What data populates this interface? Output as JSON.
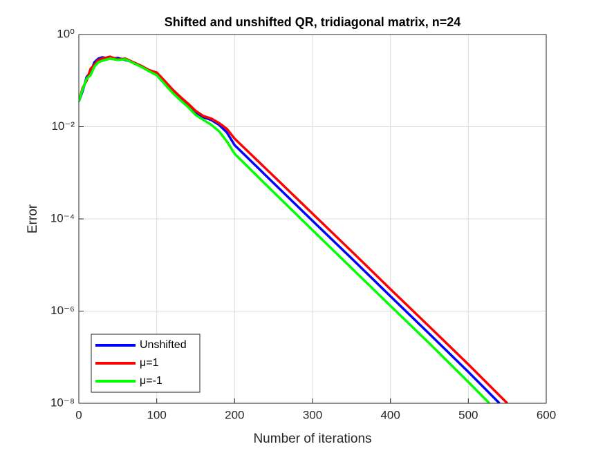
{
  "chart_data": {
    "type": "line",
    "title": "Shifted and unshifted QR, tridiagonal matrix, n=24",
    "xlabel": "Number of iterations",
    "ylabel": "Error",
    "xlim": [
      0,
      600
    ],
    "xticks": [
      0,
      100,
      200,
      300,
      400,
      500,
      600
    ],
    "ylim": [
      1e-08,
      1
    ],
    "log_y": true,
    "grid": true,
    "legend": "lower left",
    "yticks": [
      {
        "value": 1e-08,
        "label": "10⁻⁸"
      },
      {
        "value": 1e-06,
        "label": "10⁻⁶"
      },
      {
        "value": 0.0001,
        "label": "10⁻⁴"
      },
      {
        "value": 0.01,
        "label": "10⁻²"
      },
      {
        "value": 1,
        "label": "10⁰"
      }
    ],
    "series": [
      {
        "name": "Unshifted",
        "color": "#0000ff",
        "x": [
          0,
          5,
          10,
          15,
          20,
          25,
          30,
          40,
          50,
          60,
          70,
          80,
          90,
          100,
          110,
          120,
          130,
          140,
          150,
          160,
          170,
          180,
          190,
          200,
          250,
          300,
          350,
          400,
          450,
          500,
          540
        ],
        "values": [
          0.035,
          0.06,
          0.12,
          0.15,
          0.25,
          0.3,
          0.32,
          0.3,
          0.31,
          0.28,
          0.25,
          0.2,
          0.17,
          0.14,
          0.09,
          0.06,
          0.04,
          0.03,
          0.02,
          0.016,
          0.014,
          0.011,
          0.0075,
          0.004,
          0.0006,
          9.1e-05,
          1.4e-05,
          2.1e-06,
          3.2e-07,
          4.8e-08,
          1e-08
        ]
      },
      {
        "name": "μ=1",
        "color": "#ff0000",
        "x": [
          0,
          5,
          10,
          15,
          20,
          25,
          30,
          40,
          50,
          60,
          70,
          80,
          90,
          100,
          110,
          120,
          130,
          140,
          150,
          160,
          170,
          180,
          190,
          200,
          250,
          300,
          350,
          400,
          450,
          500,
          550
        ],
        "values": [
          0.035,
          0.07,
          0.1,
          0.18,
          0.22,
          0.28,
          0.3,
          0.33,
          0.29,
          0.3,
          0.25,
          0.21,
          0.17,
          0.15,
          0.1,
          0.065,
          0.045,
          0.032,
          0.022,
          0.017,
          0.015,
          0.012,
          0.009,
          0.0055,
          0.00085,
          0.00013,
          2e-05,
          3e-06,
          4.6e-07,
          7e-08,
          1e-08
        ]
      },
      {
        "name": "μ=-1",
        "color": "#00ff00",
        "x": [
          0,
          5,
          10,
          15,
          20,
          25,
          30,
          40,
          50,
          60,
          70,
          80,
          90,
          100,
          110,
          120,
          130,
          140,
          150,
          160,
          170,
          180,
          190,
          200,
          250,
          300,
          350,
          400,
          450,
          500,
          527
        ],
        "values": [
          0.035,
          0.065,
          0.11,
          0.13,
          0.2,
          0.25,
          0.27,
          0.3,
          0.28,
          0.29,
          0.24,
          0.2,
          0.16,
          0.13,
          0.085,
          0.055,
          0.038,
          0.027,
          0.018,
          0.014,
          0.011,
          0.008,
          0.0048,
          0.0026,
          0.00038,
          5.7e-05,
          8.6e-06,
          1.3e-06,
          2e-07,
          2.9e-08,
          1e-08
        ]
      }
    ]
  }
}
